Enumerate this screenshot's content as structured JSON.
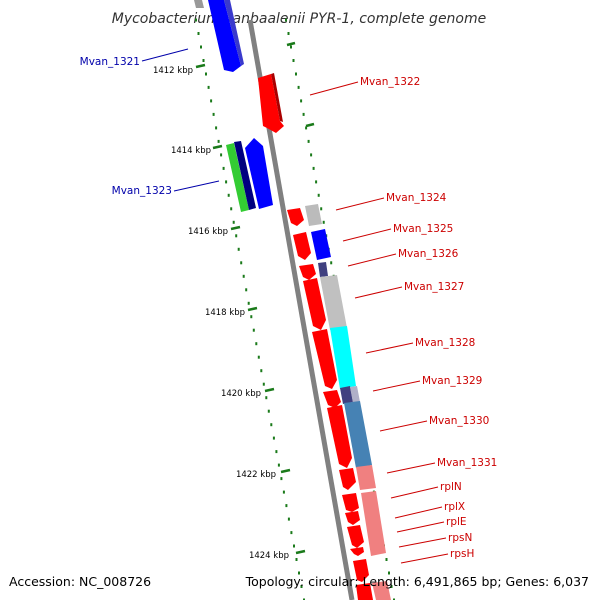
{
  "title": "Mycobacterium vanbaalenii PYR-1, complete genome",
  "accession": "Accession: NC_008726",
  "summary": "Topology: circular; Length: 6,491,865 bp; Genes: 6,037",
  "colors": {
    "backbone": "#808080",
    "tick": "#1a7a1a",
    "reverse_label": "#0000aa",
    "forward_label": "#cc0000",
    "forward_gene": "#ff0000",
    "reverse_gene": "#0000ff"
  },
  "ticks": [
    {
      "label": "1412 kbp"
    },
    {
      "label": "1414 kbp"
    },
    {
      "label": "1416 kbp"
    },
    {
      "label": "1418 kbp"
    },
    {
      "label": "1420 kbp"
    },
    {
      "label": "1422 kbp"
    },
    {
      "label": "1424 kbp"
    }
  ],
  "genes": [
    {
      "label": "Mvan_1321",
      "strand": "reverse"
    },
    {
      "label": "Mvan_1322",
      "strand": "forward"
    },
    {
      "label": "Mvan_1323",
      "strand": "reverse"
    },
    {
      "label": "Mvan_1324",
      "strand": "forward"
    },
    {
      "label": "Mvan_1325",
      "strand": "forward"
    },
    {
      "label": "Mvan_1326",
      "strand": "forward"
    },
    {
      "label": "Mvan_1327",
      "strand": "forward"
    },
    {
      "label": "Mvan_1328",
      "strand": "forward"
    },
    {
      "label": "Mvan_1329",
      "strand": "forward"
    },
    {
      "label": "Mvan_1330",
      "strand": "forward"
    },
    {
      "label": "Mvan_1331",
      "strand": "forward"
    },
    {
      "label": "rplN",
      "strand": "forward"
    },
    {
      "label": "rplX",
      "strand": "forward"
    },
    {
      "label": "rplE",
      "strand": "forward"
    },
    {
      "label": "rpsN",
      "strand": "forward"
    },
    {
      "label": "rpsH",
      "strand": "forward"
    }
  ]
}
